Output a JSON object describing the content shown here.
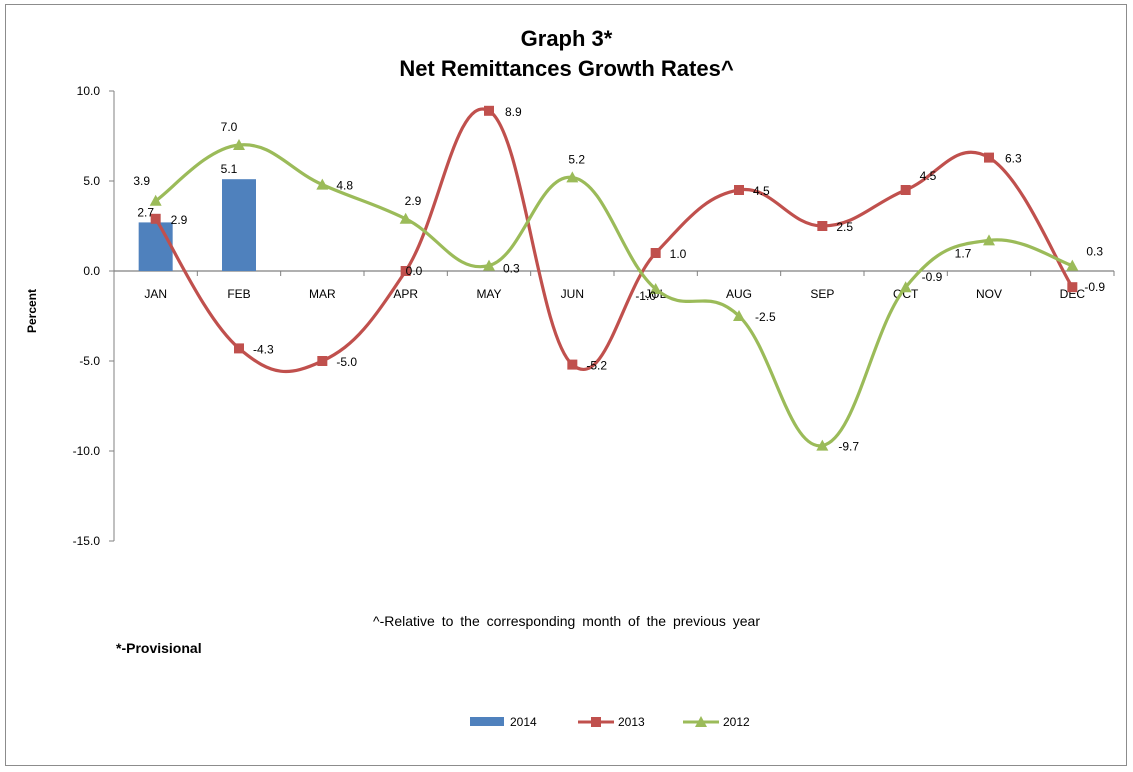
{
  "title_line1": "Graph 3*",
  "title_line2": "Net Remittances Growth Rates^",
  "footnote": "^-Relative  to the corresponding  month of the  previous  year",
  "provisional": "*-Provisional",
  "chart_data": {
    "type": "line",
    "categories": [
      "JAN",
      "FEB",
      "MAR",
      "APR",
      "MAY",
      "JUN",
      "JUL",
      "AUG",
      "SEP",
      "OCT",
      "NOV",
      "DEC"
    ],
    "ylabel": "Percent",
    "ylim": [
      -15,
      10
    ],
    "yticks": [
      10,
      5,
      0,
      -5,
      -10,
      -15
    ],
    "ytick_labels": [
      "10.0",
      "5.0",
      "0.0",
      "-5.0",
      "-10.0",
      "-15.0"
    ],
    "grid": false,
    "legend_position": "bottom",
    "series": [
      {
        "name": "2014",
        "kind": "bar",
        "color": "#4f81bd",
        "values": [
          2.7,
          5.1,
          null,
          null,
          null,
          null,
          null,
          null,
          null,
          null,
          null,
          null
        ],
        "labels": [
          "2.7",
          "5.1"
        ]
      },
      {
        "name": "2013",
        "kind": "line",
        "marker": "square",
        "color": "#c0504d",
        "values": [
          2.9,
          -4.3,
          -5.0,
          0.0,
          8.9,
          -5.2,
          1.0,
          4.5,
          2.5,
          4.5,
          6.3,
          -0.9
        ],
        "labels": [
          "2.9",
          "-4.3",
          "-5.0",
          "0.0",
          "8.9",
          "-5.2",
          "1.0",
          "4.5",
          "2.5",
          "4.5",
          "6.3",
          "-0.9"
        ]
      },
      {
        "name": "2012",
        "kind": "line",
        "marker": "triangle",
        "color": "#9bbb59",
        "values": [
          3.9,
          7.0,
          4.8,
          2.9,
          0.3,
          5.2,
          -1.0,
          -2.5,
          -9.7,
          -0.9,
          1.7,
          0.3
        ],
        "labels": [
          "3.9",
          "7.0",
          "4.8",
          "2.9",
          "0.3",
          "5.2",
          "-1.0",
          "-2.5",
          "-9.7",
          "-0.9",
          "1.7",
          "0.3"
        ]
      }
    ]
  }
}
